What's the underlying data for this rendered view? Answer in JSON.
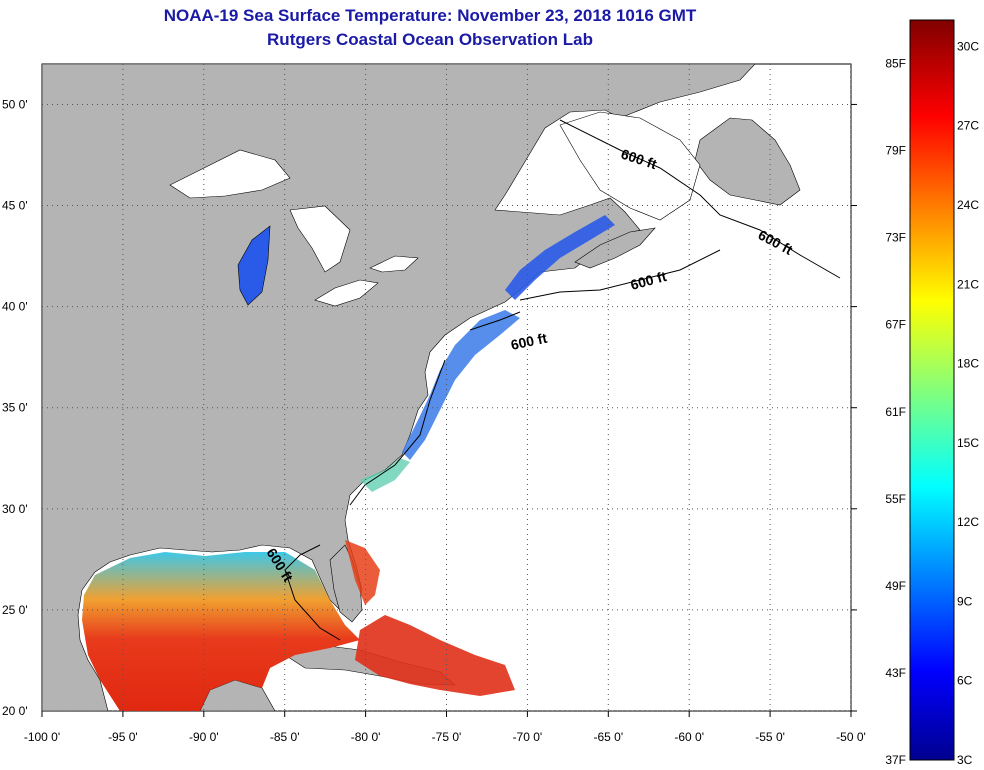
{
  "title": "NOAA-19 Sea Surface Temperature:  November 23, 2018 1016 GMT",
  "subtitle": "Rutgers Coastal Ocean Observation Lab",
  "map": {
    "lon_range": [
      -100,
      -50
    ],
    "lat_range": [
      20,
      52
    ],
    "grid": true,
    "lon_ticks": [
      -100,
      -95,
      -90,
      -85,
      -80,
      -75,
      -70,
      -65,
      -60,
      -55,
      -50
    ],
    "lat_ticks": [
      20,
      25,
      30,
      35,
      40,
      45,
      50
    ],
    "lon_labels": [
      "-100 0'",
      "-95 0'",
      "-90 0'",
      "-85 0'",
      "-80 0'",
      "-75 0'",
      "-70 0'",
      "-65 0'",
      "-60 0'",
      "-55 0'",
      "-50 0'"
    ],
    "lat_labels": [
      "20 0'",
      "25 0'",
      "30 0'",
      "35 0'",
      "40 0'",
      "45 0'",
      "50 0'"
    ],
    "contour_label": "600 ft",
    "colors": {
      "land": "#b4b4b4",
      "ocean_nodata": "#ffffff",
      "gulf_warm": "#e8301a",
      "coastal_cold": "#2a5ae8"
    }
  },
  "colorbar": {
    "range_c": [
      3,
      31
    ],
    "range_f": [
      37,
      88
    ],
    "celsius_labels": [
      "30C",
      "27C",
      "24C",
      "21C",
      "18C",
      "15C",
      "12C",
      "9C",
      "6C",
      "3C"
    ],
    "celsius_values": [
      30,
      27,
      24,
      21,
      18,
      15,
      12,
      9,
      6,
      3
    ],
    "fahrenheit_labels": [
      "85F",
      "79F",
      "73F",
      "67F",
      "61F",
      "55F",
      "49F",
      "43F",
      "37F"
    ],
    "fahrenheit_values": [
      85,
      79,
      73,
      67,
      61,
      55,
      49,
      43,
      37
    ]
  }
}
